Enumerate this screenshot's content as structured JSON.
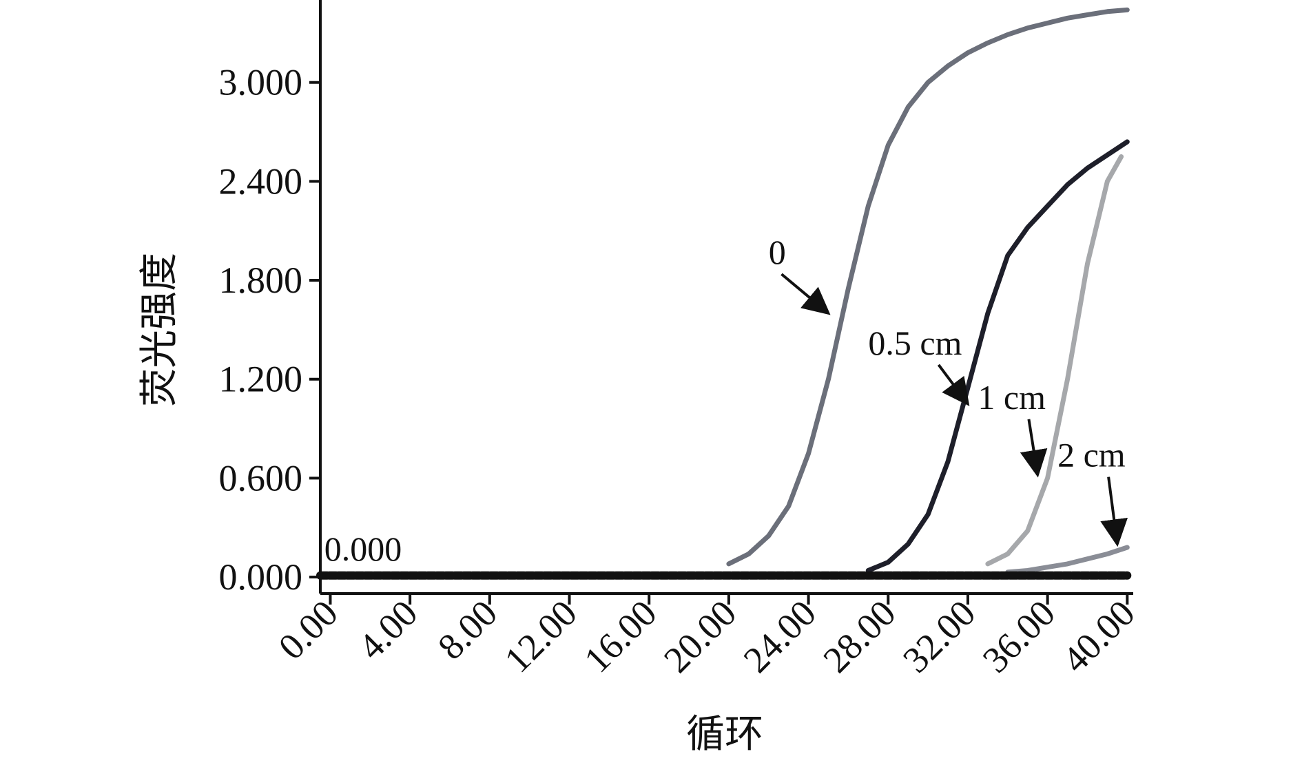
{
  "chart_data": {
    "type": "line",
    "xlabel": "循环",
    "ylabel": "荧光强度",
    "xlim": [
      -0.5,
      40.3
    ],
    "ylim": [
      -0.1,
      3.5
    ],
    "x_ticks": [
      "0.00",
      "4.00",
      "8.00",
      "12.00",
      "16.00",
      "20.00",
      "24.00",
      "28.00",
      "32.00",
      "36.00",
      "40.00"
    ],
    "y_ticks": [
      "0.000",
      "0.600",
      "1.200",
      "1.800",
      "2.400",
      "3.000"
    ],
    "grid": false,
    "legend": "none",
    "series": [
      {
        "color": "#6b6f7a",
        "x": [
          20,
          21,
          22,
          23,
          24,
          25,
          26,
          27,
          28,
          29,
          30,
          31,
          32,
          33,
          34,
          35,
          36,
          37,
          38,
          39,
          40
        ],
        "y": [
          0.08,
          0.14,
          0.25,
          0.43,
          0.75,
          1.2,
          1.75,
          2.25,
          2.62,
          2.85,
          3.0,
          3.1,
          3.18,
          3.24,
          3.29,
          3.33,
          3.36,
          3.39,
          3.41,
          3.43,
          3.44
        ]
      },
      {
        "color": "#1e1f2a",
        "x": [
          27,
          28,
          29,
          30,
          31,
          32,
          33,
          34,
          35,
          36,
          37,
          38,
          39,
          40
        ],
        "y": [
          0.04,
          0.09,
          0.2,
          0.38,
          0.7,
          1.15,
          1.6,
          1.95,
          2.12,
          2.25,
          2.38,
          2.48,
          2.56,
          2.64
        ]
      },
      {
        "color": "#a6a8ab",
        "x": [
          33,
          34,
          35,
          36,
          37,
          38,
          39,
          39.7
        ],
        "y": [
          0.08,
          0.14,
          0.28,
          0.6,
          1.2,
          1.9,
          2.4,
          2.55
        ]
      },
      {
        "color": "#8a8d96",
        "x": [
          34,
          35,
          36,
          37,
          38,
          39,
          40
        ],
        "y": [
          0.03,
          0.04,
          0.06,
          0.08,
          0.11,
          0.14,
          0.18
        ]
      },
      {
        "color": "#111111",
        "x": [
          -0.5,
          40
        ],
        "y": [
          0.01,
          0.01
        ]
      }
    ],
    "annotations": [
      {
        "text": "0",
        "x": 22.0,
        "y": 1.9,
        "arrow_to_x": 25.0,
        "arrow_to_y": 1.6
      },
      {
        "text": "0.5 cm",
        "x": 27.0,
        "y": 1.35,
        "arrow_to_x": 32.0,
        "arrow_to_y": 1.05
      },
      {
        "text": "1 cm",
        "x": 32.5,
        "y": 1.02,
        "arrow_to_x": 35.5,
        "arrow_to_y": 0.62
      },
      {
        "text": "2 cm",
        "x": 36.5,
        "y": 0.67,
        "arrow_to_x": 39.5,
        "arrow_to_y": 0.2
      },
      {
        "text": "0.000",
        "x": -0.3,
        "y": 0.1
      }
    ]
  }
}
